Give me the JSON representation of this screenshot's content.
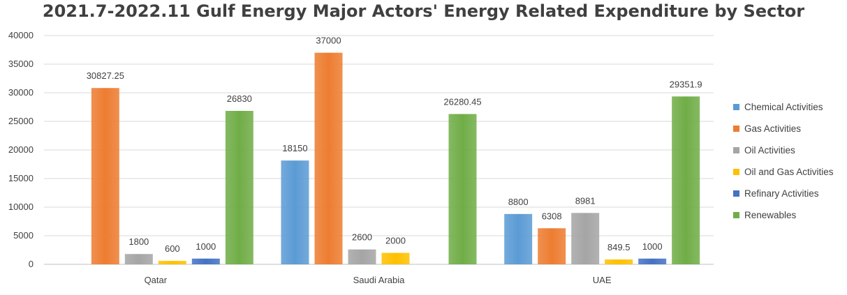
{
  "chart_data": {
    "type": "bar",
    "title": "2021.7-2022.11 Gulf Energy Major Actors' Energy Related Expenditure by Sector",
    "xlabel": "",
    "ylabel": "",
    "ylim": [
      0,
      40000
    ],
    "yticks": [
      0,
      5000,
      10000,
      15000,
      20000,
      25000,
      30000,
      35000,
      40000
    ],
    "grid": true,
    "legend_position": "right",
    "categories": [
      "Qatar",
      "Saudi Arabia",
      "UAE"
    ],
    "series": [
      {
        "name": "Chemical Activities",
        "color": "#5b9bd5",
        "values": [
          null,
          18150,
          8800
        ],
        "labels": [
          "",
          "18150",
          "8800"
        ]
      },
      {
        "name": "Gas Activities",
        "color": "#ed7d31",
        "values": [
          30827.25,
          37000,
          6308
        ],
        "labels": [
          "30827.25",
          "37000",
          "6308"
        ]
      },
      {
        "name": "Oil Activities",
        "color": "#a5a5a5",
        "values": [
          1800,
          2600,
          8981
        ],
        "labels": [
          "1800",
          "2600",
          "8981"
        ]
      },
      {
        "name": "Oil and Gas Activities",
        "color": "#ffc000",
        "values": [
          600,
          2000,
          849.5
        ],
        "labels": [
          "600",
          "2000",
          "849.5"
        ]
      },
      {
        "name": "Refinary Activities",
        "color": "#4472c4",
        "values": [
          1000,
          null,
          1000
        ],
        "labels": [
          "1000",
          "",
          "1000"
        ]
      },
      {
        "name": "Renewables",
        "color": "#70ad47",
        "values": [
          26830,
          26280.45,
          29351.9
        ],
        "labels": [
          "26830",
          "26280.45",
          "29351.9"
        ]
      }
    ]
  }
}
